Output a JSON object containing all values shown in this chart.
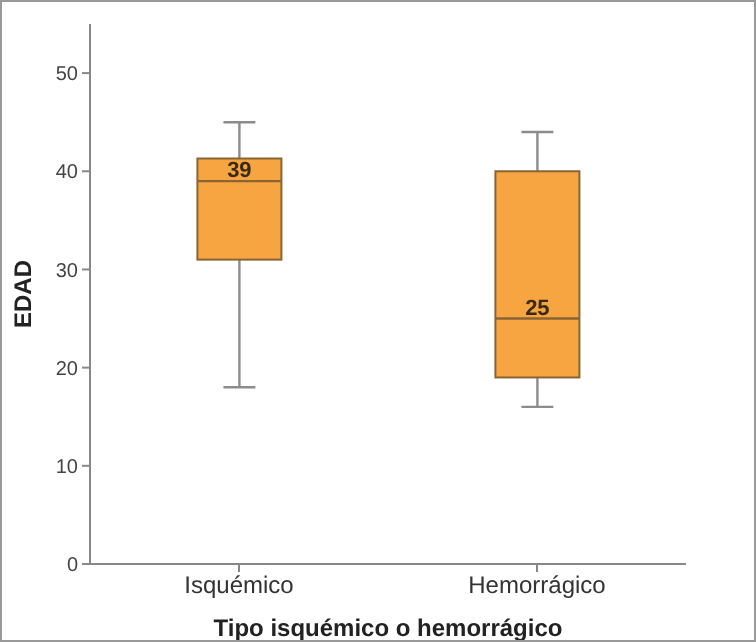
{
  "chart_data": {
    "type": "box",
    "xlabel": "Tipo isquémico o hemorrágico",
    "ylabel": "EDAD",
    "categories": [
      "Isquémico",
      "Hemorrágico"
    ],
    "color": "#f7a540",
    "boxes": [
      {
        "low": 18,
        "q1": 31,
        "median": 39,
        "q3": 41.3,
        "high": 45
      },
      {
        "low": 16,
        "q1": 19,
        "median": 25,
        "q3": 40,
        "high": 44
      }
    ],
    "annotations": [
      {
        "text": "39",
        "x": "Isquémico",
        "y": 39
      },
      {
        "text": "25",
        "x": "Hemorrágico",
        "y": 25
      }
    ],
    "ylim": [
      0,
      55
    ],
    "yticks": [
      0,
      10,
      20,
      30,
      40,
      50
    ],
    "grid": false,
    "legend": false
  }
}
